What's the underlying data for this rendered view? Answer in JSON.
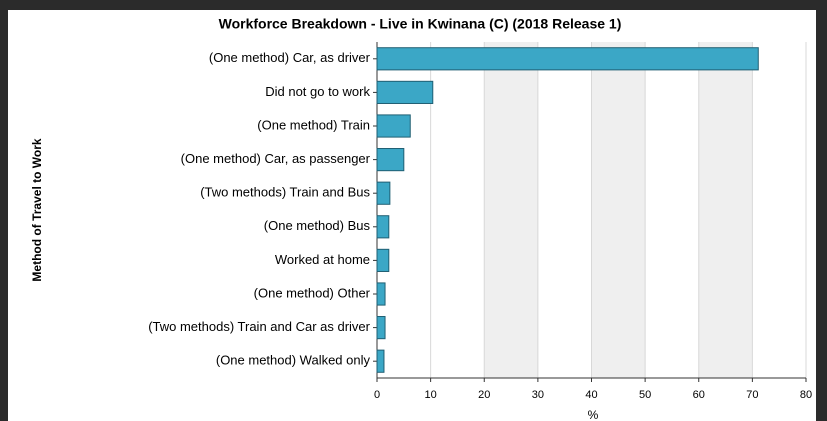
{
  "chart_data": {
    "type": "bar",
    "orientation": "horizontal",
    "title": "Workforce Breakdown - Live in Kwinana (C) (2018 Release 1)",
    "y_axis_label": "Method of Travel to Work",
    "x_axis_label": "%",
    "categories": [
      "(One method) Car, as driver",
      "Did not go to work",
      "(One method) Train",
      "(One method) Car, as passenger",
      "(Two methods) Train and Bus",
      "(One method) Bus",
      "Worked at home",
      "(One method) Other",
      "(Two methods) Train and Car as driver",
      "(One method) Walked only"
    ],
    "values": [
      71.1,
      10.4,
      6.2,
      5.0,
      2.4,
      2.2,
      2.2,
      1.5,
      1.5,
      1.3
    ],
    "color": "#3ba7c6",
    "xlim": [
      0,
      80
    ],
    "xticks": [
      0,
      10,
      20,
      30,
      40,
      50,
      60,
      70,
      80
    ],
    "grid": true
  }
}
